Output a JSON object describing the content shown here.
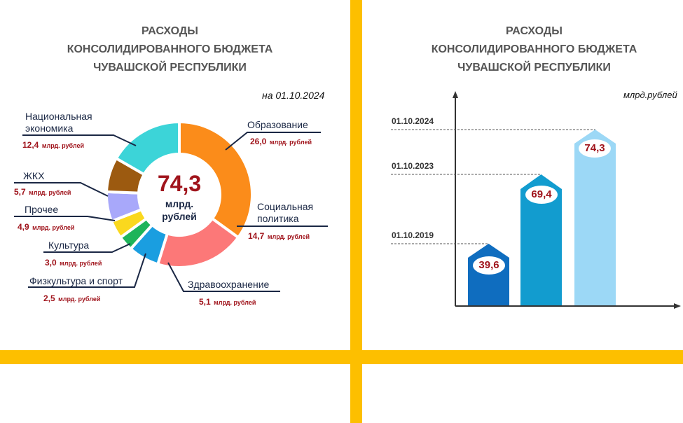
{
  "left_panel": {
    "title": [
      "РАСХОДЫ",
      "КОНСОЛИДИРОВАННОГО БЮДЖЕТА",
      "ЧУВАШСКОЙ РЕСПУБЛИКИ"
    ],
    "date_label": "на 01.10.2024",
    "total_value": "74,3",
    "total_unit_line1": "млрд.",
    "total_unit_line2": "рублей",
    "unit_suffix": "млрд. рублей",
    "segments": [
      {
        "label_line1": "Образование",
        "label_line2": "",
        "value": "26,0",
        "color": "#fb8c1a"
      },
      {
        "label_line1": "Социальная",
        "label_line2": "политика",
        "value": "14,7",
        "color": "#fc7878"
      },
      {
        "label_line1": "Здравоохранение",
        "label_line2": "",
        "value": "5,1",
        "color": "#1a9ee0"
      },
      {
        "label_line1": "Физкультура и спорт",
        "label_line2": "",
        "value": "2,5",
        "color": "#1eb45a"
      },
      {
        "label_line1": "Культура",
        "label_line2": "",
        "value": "3,0",
        "color": "#fad81e"
      },
      {
        "label_line1": "Прочее",
        "label_line2": "",
        "value": "4,9",
        "color": "#a8a8fa"
      },
      {
        "label_line1": "ЖКХ",
        "label_line2": "",
        "value": "5,7",
        "color": "#9c5a10"
      },
      {
        "label_line1": "Национальная",
        "label_line2": "экономика",
        "value": "12,4",
        "color": "#3cd4d8"
      }
    ]
  },
  "right_panel": {
    "title": [
      "РАСХОДЫ",
      "КОНСОЛИДИРОВАННОГО БЮДЖЕТА",
      "ЧУВАШСКОЙ РЕСПУБЛИКИ"
    ],
    "unit_label": "млрд.рублей",
    "bars": [
      {
        "date": "01.10.2019",
        "value": "39,6",
        "color": "#0f6dbf"
      },
      {
        "date": "01.10.2023",
        "value": "69,4",
        "color": "#129ccf"
      },
      {
        "date": "01.10.2024",
        "value": "74,3",
        "color": "#9cd8f6"
      }
    ]
  },
  "chart_data": [
    {
      "type": "pie",
      "title": "РАСХОДЫ КОНСОЛИДИРОВАННОГО БЮДЖЕТА ЧУВАШСКОЙ РЕСПУБЛИКИ",
      "subtitle": "на 01.10.2024",
      "donut": true,
      "center_label": "74,3 млрд. рублей",
      "unit": "млрд. рублей",
      "categories": [
        "Образование",
        "Социальная политика",
        "Здравоохранение",
        "Физкультура и спорт",
        "Культура",
        "Прочее",
        "ЖКХ",
        "Национальная экономика"
      ],
      "values": [
        26.0,
        14.7,
        5.1,
        2.5,
        3.0,
        4.9,
        5.7,
        12.4
      ],
      "colors": [
        "#fb8c1a",
        "#fc7878",
        "#1a9ee0",
        "#1eb45a",
        "#fad81e",
        "#a8a8fa",
        "#9c5a10",
        "#3cd4d8"
      ],
      "total": 74.3
    },
    {
      "type": "bar",
      "title": "РАСХОДЫ КОНСОЛИДИРОВАННОГО БЮДЖЕТА ЧУВАШСКОЙ РЕСПУБЛИКИ",
      "ylabel": "млрд.рублей",
      "xlabel": "",
      "categories": [
        "01.10.2019",
        "01.10.2023",
        "01.10.2024"
      ],
      "values": [
        39.6,
        69.4,
        74.3
      ],
      "grid": false,
      "legend": "none"
    }
  ]
}
